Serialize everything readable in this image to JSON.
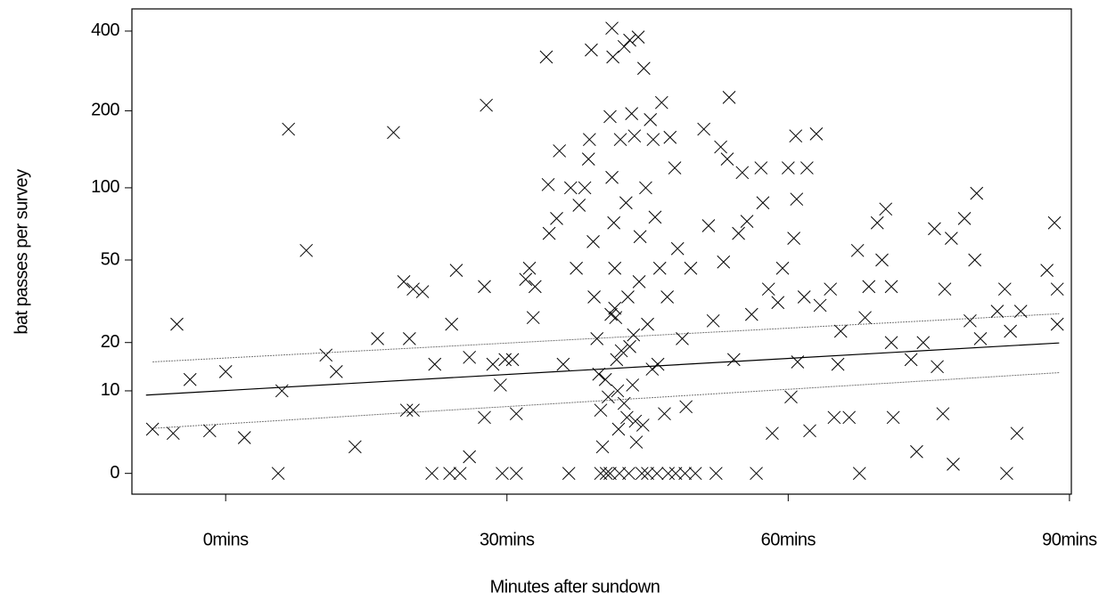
{
  "chart_data": {
    "type": "scatter",
    "xlabel": "Minutes after sundown",
    "ylabel": "bat passes per survey",
    "xlim": [
      -10,
      90.2
    ],
    "xticks": [
      {
        "value": 0,
        "label": "0mins"
      },
      {
        "value": 30,
        "label": "30mins"
      },
      {
        "value": 60,
        "label": "60mins"
      },
      {
        "value": 90,
        "label": "90mins"
      }
    ],
    "ylim": [
      -1.6,
      484
    ],
    "yticks": [
      0,
      10,
      20,
      50,
      100,
      200,
      400
    ],
    "yscale": "log",
    "ylog_offset": 10,
    "grid": false,
    "series": [
      {
        "color": "#000000",
        "marker": "x",
        "x": [
          -7.8,
          -5.6,
          -5.2,
          -3.8,
          -1.7,
          0,
          2,
          5.6,
          6,
          6.7,
          8.6,
          10.7,
          11.8,
          13.8,
          16.2,
          17.9,
          19,
          19.6,
          20,
          21,
          19.3,
          20,
          22,
          22.3,
          23.9,
          24.6,
          24.1,
          25,
          26,
          26,
          27.6,
          27.8,
          27.6,
          28.5,
          29.3,
          29.5,
          29.8,
          30.6,
          31,
          31,
          32,
          32.4,
          32.8,
          33,
          34.2,
          34.4,
          34.5,
          35.3,
          35.6,
          36,
          36.8,
          36.6,
          37.4,
          37.7,
          38.3,
          38.7,
          39,
          38.8,
          39.2,
          39.3,
          39.6,
          39.8,
          40,
          40.2,
          40.6,
          41.2,
          41,
          41.2,
          41.3,
          41.4,
          41.5,
          41.6,
          41.7,
          41.8,
          41.9,
          42,
          42.1,
          42.5,
          42.7,
          42.9,
          43.1,
          43.1,
          43.3,
          43.4,
          43.6,
          43.7,
          44,
          44.2,
          44.4,
          44.6,
          44.8,
          45,
          45.3,
          45.6,
          45.8,
          46.1,
          46.3,
          46.5,
          46.8,
          47.1,
          47.2,
          47.4,
          47.9,
          48.2,
          48.7,
          49.1,
          49.6,
          50.1,
          51,
          51.5,
          52,
          52.3,
          52.8,
          53.1,
          53.5,
          53.7,
          54.2,
          54.7,
          55.1,
          55.6,
          56.1,
          56.6,
          57.1,
          57.3,
          57.9,
          58.3,
          58.9,
          59.4,
          60,
          60.3,
          60.6,
          60.8,
          60.9,
          61,
          61.7,
          62,
          62.3,
          63,
          63.4,
          64.5,
          64.9,
          65.3,
          65.6,
          66.5,
          67.4,
          67.6,
          68.2,
          68.6,
          69.5,
          70,
          70.4,
          71,
          71,
          71.2,
          73.1,
          73.7,
          74.4,
          75.6,
          75.9,
          76.5,
          76.7,
          77.4,
          77.6,
          78.8,
          79.4,
          79.9,
          80.1,
          80.5,
          82.3,
          83.1,
          83.3,
          83.7,
          84.4,
          84.8,
          87.6,
          88.4,
          88.7,
          88.7,
          40,
          41,
          43,
          45,
          46,
          48,
          49,
          40.5,
          41.5,
          42.5,
          43.5,
          44.5,
          45.5,
          40.8,
          42.2,
          43.8,
          41.1,
          42.8,
          44.1
        ],
        "values": [
          4.5,
          4,
          25,
          12,
          4.3,
          13.5,
          3.5,
          0,
          10,
          170,
          55,
          17,
          13.5,
          2.5,
          21,
          165,
          40,
          21,
          37,
          36,
          7,
          7,
          0,
          15,
          0,
          45,
          25,
          0,
          16.5,
          1.5,
          38,
          210,
          6,
          15,
          11,
          0,
          16,
          16,
          0,
          6.5,
          41,
          46,
          27,
          38,
          320,
          103,
          65,
          75,
          140,
          15,
          100,
          0,
          46,
          85,
          100,
          130,
          340,
          155,
          60,
          34,
          21,
          13,
          7,
          2.5,
          0,
          410,
          190,
          110,
          320,
          72,
          46,
          27,
          16,
          10,
          4.5,
          0,
          155,
          350,
          87,
          34,
          370,
          19,
          195,
          11,
          160,
          5.5,
          380,
          63,
          0,
          290,
          100,
          25,
          185,
          155,
          76,
          15,
          46,
          215,
          6.5,
          34,
          0,
          158,
          120,
          56,
          21,
          7.5,
          46,
          0,
          170,
          70,
          26,
          0,
          145,
          49,
          130,
          225,
          16,
          65,
          115,
          73,
          28,
          0,
          120,
          87,
          37,
          4,
          32,
          46,
          120,
          9,
          62,
          160,
          90,
          15.5,
          34,
          120,
          4.3,
          163,
          31,
          37,
          6,
          15,
          23,
          6,
          55,
          0,
          27,
          38,
          72,
          50,
          82,
          38,
          20,
          6,
          16,
          2,
          20,
          68,
          14.5,
          6.5,
          37,
          62,
          0.8,
          75,
          26,
          50,
          95,
          21,
          29,
          37,
          0,
          23,
          4,
          29,
          45,
          72,
          37,
          25,
          0,
          0,
          0,
          0,
          0,
          0,
          0,
          12,
          30,
          8,
          22,
          5,
          14,
          9,
          18,
          3,
          28,
          6,
          40
        ]
      }
    ],
    "lines": [
      {
        "x": [
          -8.5,
          88.9
        ],
        "values": [
          9.3,
          19.9
        ],
        "color": "#000000",
        "dash": false
      },
      {
        "x": [
          -7.8,
          88.9
        ],
        "values": [
          15.5,
          28.2
        ],
        "color": "#777777",
        "dash": true
      },
      {
        "x": [
          -7.8,
          88.9
        ],
        "values": [
          4.6,
          13.3
        ],
        "color": "#777777",
        "dash": true
      }
    ]
  }
}
